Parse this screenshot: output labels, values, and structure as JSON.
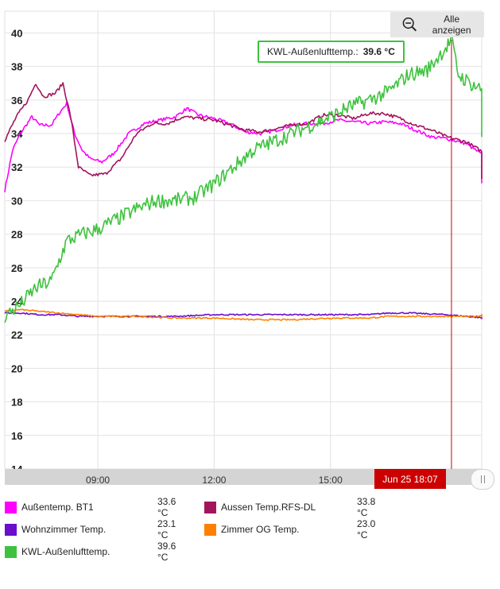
{
  "toolbar": {
    "show_all_label": "Alle anzeigen",
    "zoom_icon": "zoom-out-icon"
  },
  "tooltip": {
    "label": "KWL-Außenlufttemp.:",
    "value": "39.6 °C",
    "color": "#3ec23e"
  },
  "cursor": {
    "label": "Jun 25 18:07",
    "time": 18.12,
    "color": "#cc0000"
  },
  "chart_data": {
    "type": "line",
    "title": "",
    "xlabel": "",
    "ylabel": "",
    "x_ticks": [
      {
        "label": "09:00",
        "value": 9
      },
      {
        "label": "12:00",
        "value": 12
      },
      {
        "label": "15:00",
        "value": 15
      }
    ],
    "xlim": [
      6.6,
      18.9
    ],
    "y_ticks": [
      14,
      16,
      18,
      20,
      22,
      24,
      26,
      28,
      30,
      32,
      34,
      36,
      38,
      40
    ],
    "ylim": [
      14,
      41.3
    ],
    "grid": true,
    "legend_position": "bottom",
    "series": [
      {
        "name": "Außentemp. BT1",
        "color": "#ff00ff",
        "current": "33.6 °C",
        "noise": 0.1,
        "points": [
          [
            6.6,
            30.6
          ],
          [
            6.8,
            33
          ],
          [
            7.0,
            34
          ],
          [
            7.3,
            35
          ],
          [
            7.5,
            34.5
          ],
          [
            7.8,
            34.5
          ],
          [
            8.0,
            35.2
          ],
          [
            8.2,
            35.8
          ],
          [
            8.4,
            34
          ],
          [
            8.6,
            33
          ],
          [
            8.8,
            32.5
          ],
          [
            9.1,
            32.3
          ],
          [
            9.4,
            32.8
          ],
          [
            9.8,
            34
          ],
          [
            10.2,
            34.6
          ],
          [
            10.6,
            34.8
          ],
          [
            11.0,
            35
          ],
          [
            11.3,
            35.5
          ],
          [
            11.6,
            35.1
          ],
          [
            12.0,
            34.9
          ],
          [
            12.4,
            34.6
          ],
          [
            12.8,
            34.1
          ],
          [
            13.2,
            34
          ],
          [
            13.6,
            34.2
          ],
          [
            14.0,
            34.5
          ],
          [
            14.4,
            34.6
          ],
          [
            14.8,
            34.6
          ],
          [
            15.2,
            34.8
          ],
          [
            15.6,
            34.7
          ],
          [
            16.0,
            34.6
          ],
          [
            16.4,
            34.7
          ],
          [
            16.8,
            34.6
          ],
          [
            17.2,
            34.2
          ],
          [
            17.6,
            33.8
          ],
          [
            18.0,
            33.7
          ],
          [
            18.5,
            33.4
          ],
          [
            19.0,
            32.6
          ],
          [
            19.5,
            31.4
          ],
          [
            19.7,
            31.1
          ]
        ]
      },
      {
        "name": "Aussen Temp.RFS-DL",
        "color": "#a2155c",
        "current": "33.8 °C",
        "noise": 0.1,
        "points": [
          [
            6.6,
            33.6
          ],
          [
            6.9,
            35
          ],
          [
            7.2,
            36
          ],
          [
            7.4,
            37
          ],
          [
            7.6,
            36.2
          ],
          [
            7.9,
            36.4
          ],
          [
            8.1,
            37
          ],
          [
            8.3,
            35
          ],
          [
            8.5,
            32
          ],
          [
            8.8,
            31.5
          ],
          [
            9.2,
            31.6
          ],
          [
            9.6,
            32.5
          ],
          [
            10.0,
            34
          ],
          [
            10.4,
            34.6
          ],
          [
            10.8,
            34.6
          ],
          [
            11.2,
            35
          ],
          [
            11.6,
            34.9
          ],
          [
            12.0,
            34.8
          ],
          [
            12.4,
            34.5
          ],
          [
            12.8,
            34.2
          ],
          [
            13.2,
            34.1
          ],
          [
            13.6,
            34.3
          ],
          [
            14.0,
            34.5
          ],
          [
            14.4,
            34.6
          ],
          [
            14.8,
            35.1
          ],
          [
            15.2,
            35.1
          ],
          [
            15.6,
            34.9
          ],
          [
            16.0,
            35.2
          ],
          [
            16.4,
            35.2
          ],
          [
            16.8,
            34.9
          ],
          [
            17.2,
            34.5
          ],
          [
            17.6,
            34.2
          ],
          [
            18.0,
            33.8
          ],
          [
            18.5,
            33.5
          ],
          [
            19.0,
            32.8
          ],
          [
            19.5,
            31.6
          ],
          [
            19.7,
            31.3
          ]
        ]
      },
      {
        "name": "Wohnzimmer Temp.",
        "color": "#6a0dcc",
        "current": "23.1 °C",
        "noise": 0.04,
        "points": [
          [
            6.6,
            23.3
          ],
          [
            7.0,
            23.3
          ],
          [
            7.5,
            23.2
          ],
          [
            8.0,
            23.2
          ],
          [
            8.5,
            23.1
          ],
          [
            9.0,
            23.1
          ],
          [
            10.0,
            23.1
          ],
          [
            11.0,
            23.1
          ],
          [
            12.0,
            23.2
          ],
          [
            13.0,
            23.2
          ],
          [
            14.0,
            23.2
          ],
          [
            15.0,
            23.2
          ],
          [
            16.0,
            23.2
          ],
          [
            16.5,
            23.3
          ],
          [
            17.0,
            23.3
          ],
          [
            18.0,
            23.2
          ],
          [
            18.5,
            23.1
          ],
          [
            19.0,
            23.0
          ],
          [
            19.7,
            23.0
          ]
        ]
      },
      {
        "name": "Zimmer OG Temp.",
        "color": "#ff8000",
        "current": "23.0 °C",
        "noise": 0.04,
        "points": [
          [
            6.6,
            23.4
          ],
          [
            7.0,
            23.5
          ],
          [
            7.5,
            23.4
          ],
          [
            8.0,
            23.3
          ],
          [
            8.5,
            23.2
          ],
          [
            9.0,
            23.1
          ],
          [
            10.0,
            23.1
          ],
          [
            11.0,
            23.0
          ],
          [
            12.0,
            23.0
          ],
          [
            13.0,
            22.9
          ],
          [
            14.0,
            22.9
          ],
          [
            15.0,
            23.0
          ],
          [
            16.0,
            23.0
          ],
          [
            16.5,
            23.1
          ],
          [
            17.0,
            23.1
          ],
          [
            18.0,
            23.1
          ],
          [
            18.5,
            23.1
          ],
          [
            19.0,
            23.1
          ],
          [
            19.7,
            23.2
          ]
        ]
      },
      {
        "name": "KWL-Außenlufttemp.",
        "color": "#3ec23e",
        "current": "39.6 °C",
        "noise": 0.45,
        "points": [
          [
            6.6,
            23.1
          ],
          [
            7.0,
            23.8
          ],
          [
            7.4,
            24.8
          ],
          [
            7.8,
            25.2
          ],
          [
            8.2,
            27.6
          ],
          [
            8.6,
            28
          ],
          [
            9.0,
            28.3
          ],
          [
            9.5,
            28.9
          ],
          [
            10.0,
            29.5
          ],
          [
            10.5,
            30
          ],
          [
            11.0,
            30
          ],
          [
            11.5,
            30.2
          ],
          [
            12.0,
            31
          ],
          [
            12.5,
            32
          ],
          [
            13.0,
            33
          ],
          [
            13.5,
            33.5
          ],
          [
            14.0,
            34
          ],
          [
            14.5,
            34.5
          ],
          [
            15.0,
            35
          ],
          [
            15.5,
            35.6
          ],
          [
            16.0,
            36
          ],
          [
            16.5,
            36.5
          ],
          [
            17.0,
            37.5
          ],
          [
            17.5,
            37.8
          ],
          [
            18.0,
            39.2
          ],
          [
            18.12,
            39.6
          ],
          [
            18.3,
            37.5
          ],
          [
            18.6,
            37
          ],
          [
            19.0,
            36.5
          ],
          [
            19.3,
            35.8
          ],
          [
            19.6,
            34.8
          ],
          [
            19.8,
            33.8
          ]
        ]
      }
    ]
  }
}
